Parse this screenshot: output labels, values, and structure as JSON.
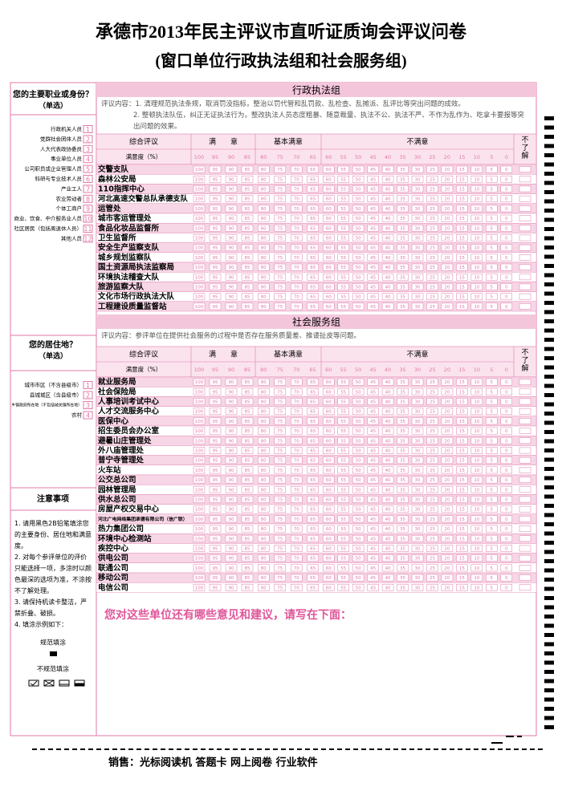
{
  "header": {
    "title": "承德市2013年民主评议市直听证质询会评议问卷",
    "subtitle": "(窗口单位行政执法组和社会服务组)"
  },
  "occupation": {
    "question": "您的主要职业或身份？",
    "note": "（单选）",
    "options": [
      {
        "label": "行政机关人员",
        "number": 1
      },
      {
        "label": "党群社会团体人员",
        "number": 2
      },
      {
        "label": "人大代表政协委员",
        "number": 3
      },
      {
        "label": "事业单位人员",
        "number": 4
      },
      {
        "label": "公司职员或企业管理人员",
        "number": 5
      },
      {
        "label": "科研与专业技术人员",
        "number": 6
      },
      {
        "label": "产业工人",
        "number": 7
      },
      {
        "label": "农业劳动者",
        "number": 8
      },
      {
        "label": "个体工商户",
        "number": 9
      },
      {
        "label": "商业、饮食、中介服务业人员",
        "number": 10
      },
      {
        "label": "社区居民（包括离退休人员）",
        "number": 11
      },
      {
        "label": "其他人员",
        "number": 12
      }
    ]
  },
  "residence": {
    "question": "您的居住地？",
    "note": "（单选）",
    "options": [
      {
        "label": "城市市区（不含县级市）",
        "number": 1
      },
      {
        "label": "县城城区（含县级市）",
        "number": 2
      },
      {
        "label": "乡镇政府所在地（不包括城关镇所在地）",
        "number": 3
      },
      {
        "label": "农村",
        "number": 4
      }
    ]
  },
  "notes": {
    "title": "注意事项",
    "items": [
      "1. 请用黑色2B铅笔填涂您的主要身份、居住地和满意度。",
      "2. 对每个参评单位的评价只能选择一项，多涂时以颜色最深的选项为准，不涂按不了解处理。",
      "3. 请保持机读卡整洁，严禁折叠、破损。",
      "4. 填涂示例如下："
    ],
    "good_label": "规范填涂",
    "bad_label": "不规范填涂"
  },
  "scale": {
    "overall": "综合评议",
    "label": "满意度（%）",
    "unknown": "不了解",
    "groups": [
      {
        "name": "满　　意",
        "values": [
          100,
          95,
          90,
          85
        ]
      },
      {
        "name": "基本满意",
        "values": [
          80,
          75,
          70,
          65
        ]
      },
      {
        "name": "不满意",
        "values": [
          60,
          55,
          50,
          45,
          40,
          35,
          30,
          25,
          20,
          15,
          10,
          5,
          0
        ]
      }
    ]
  },
  "sections": [
    {
      "title": "行政执法组",
      "content_label": "评议内容：",
      "content": [
        "1. 清理规范执法条规，取消罚没指标，整治以罚代管和乱罚款、乱检查、乱摊派、乱评比等突出问题的成效。",
        "2. 整顿执法队伍，纠正无证执法行为，整改执法人员态度粗暴、随意裁量、执法不公、执法不严、不作为乱作为、吃拿卡要报等突出问题的效果。"
      ],
      "units": [
        "交警支队",
        "森林公安局",
        "110指挥中心",
        "河北高速交警总队承德支队",
        "运管处",
        "城市客运管理处",
        "食品化妆品监督所",
        "卫生监督所",
        "安全生产监察支队",
        "城乡规划监察队",
        "国土资源局执法监察局",
        "环境执法稽查大队",
        "旅游监察大队",
        "文化市场行政执法大队",
        "工程建设质量监督站"
      ]
    },
    {
      "title": "社会服务组",
      "content_label": "评议内容：",
      "content": [
        "参评单位在提供社会服务的过程中是否存在服务质量差、推诿扯皮等问题。"
      ],
      "units": [
        "就业服务局",
        "社会保险局",
        "人事培训考试中心",
        "人才交流服务中心",
        "医保中心",
        "招生委员会办公室",
        "避暑山庄管理处",
        "外八庙管理处",
        "普宁寺管理处",
        "火车站",
        "公交总公司",
        "园林管理局",
        "供水总公司",
        "房屋产权交易中心",
        "河北广电网络集团承德有限公司（信广联）",
        "热力集团公司",
        "环境中心检测站",
        "疾控中心",
        "供电公司",
        "联通公司",
        "移动公司",
        "电信公司"
      ]
    }
  ],
  "comment": "您对这些单位还有哪些意见和建议，请写在下面：",
  "footer": "销售：光标阅读机 答题卡 网上阅卷 行业软件"
}
